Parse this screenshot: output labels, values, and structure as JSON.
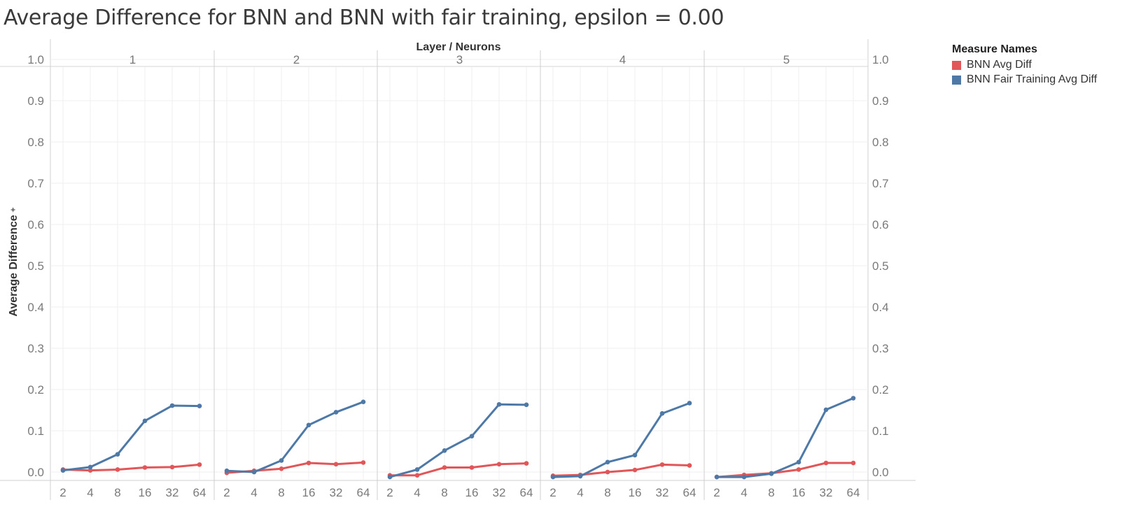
{
  "title": "Average Difference for BNN and BNN with fair training, epsilon = 0.00",
  "legend": {
    "title": "Measure Names",
    "items": [
      {
        "label": "BNN Avg Diff",
        "color": "#e15759"
      },
      {
        "label": "BNN Fair Training Avg Diff",
        "color": "#4e79a7"
      }
    ]
  },
  "chart_data": {
    "type": "line",
    "title": "Average Difference for BNN and BNN with fair training, epsilon = 0.00",
    "column_header": "Layer  /  Neurons",
    "ylabel": "Average Difference",
    "ylim": [
      0,
      1.0
    ],
    "yticks": [
      "0.0",
      "0.1",
      "0.2",
      "0.3",
      "0.4",
      "0.5",
      "0.6",
      "0.7",
      "0.8",
      "0.9",
      "1.0"
    ],
    "x": [
      "2",
      "4",
      "8",
      "16",
      "32",
      "64"
    ],
    "grid": true,
    "legend_position": "top-right",
    "panels": [
      {
        "layer": "1",
        "series": [
          {
            "name": "BNN Avg Diff",
            "color": "#e15759",
            "values": [
              0.006,
              0.004,
              0.006,
              0.011,
              0.012,
              0.018
            ]
          },
          {
            "name": "BNN Fair Training Avg Diff",
            "color": "#4e79a7",
            "values": [
              0.004,
              0.012,
              0.043,
              0.124,
              0.161,
              0.16
            ]
          }
        ]
      },
      {
        "layer": "2",
        "series": [
          {
            "name": "BNN Avg Diff",
            "color": "#e15759",
            "values": [
              -0.002,
              0.003,
              0.008,
              0.022,
              0.019,
              0.023
            ]
          },
          {
            "name": "BNN Fair Training Avg Diff",
            "color": "#4e79a7",
            "values": [
              0.003,
              0.0,
              0.028,
              0.114,
              0.145,
              0.17
            ]
          }
        ]
      },
      {
        "layer": "3",
        "series": [
          {
            "name": "BNN Avg Diff",
            "color": "#e15759",
            "values": [
              -0.008,
              -0.008,
              0.011,
              0.011,
              0.019,
              0.021
            ]
          },
          {
            "name": "BNN Fair Training Avg Diff",
            "color": "#4e79a7",
            "values": [
              -0.012,
              0.006,
              0.052,
              0.087,
              0.164,
              0.163
            ]
          }
        ]
      },
      {
        "layer": "4",
        "series": [
          {
            "name": "BNN Avg Diff",
            "color": "#e15759",
            "values": [
              -0.009,
              -0.007,
              0.0,
              0.005,
              0.018,
              0.016
            ]
          },
          {
            "name": "BNN Fair Training Avg Diff",
            "color": "#4e79a7",
            "values": [
              -0.012,
              -0.01,
              0.024,
              0.041,
              0.142,
              0.167
            ]
          }
        ]
      },
      {
        "layer": "5",
        "series": [
          {
            "name": "BNN Avg Diff",
            "color": "#e15759",
            "values": [
              -0.012,
              -0.007,
              -0.003,
              0.006,
              0.022,
              0.022
            ]
          },
          {
            "name": "BNN Fair Training Avg Diff",
            "color": "#4e79a7",
            "values": [
              -0.012,
              -0.012,
              -0.004,
              0.024,
              0.151,
              0.179
            ]
          }
        ]
      }
    ]
  }
}
